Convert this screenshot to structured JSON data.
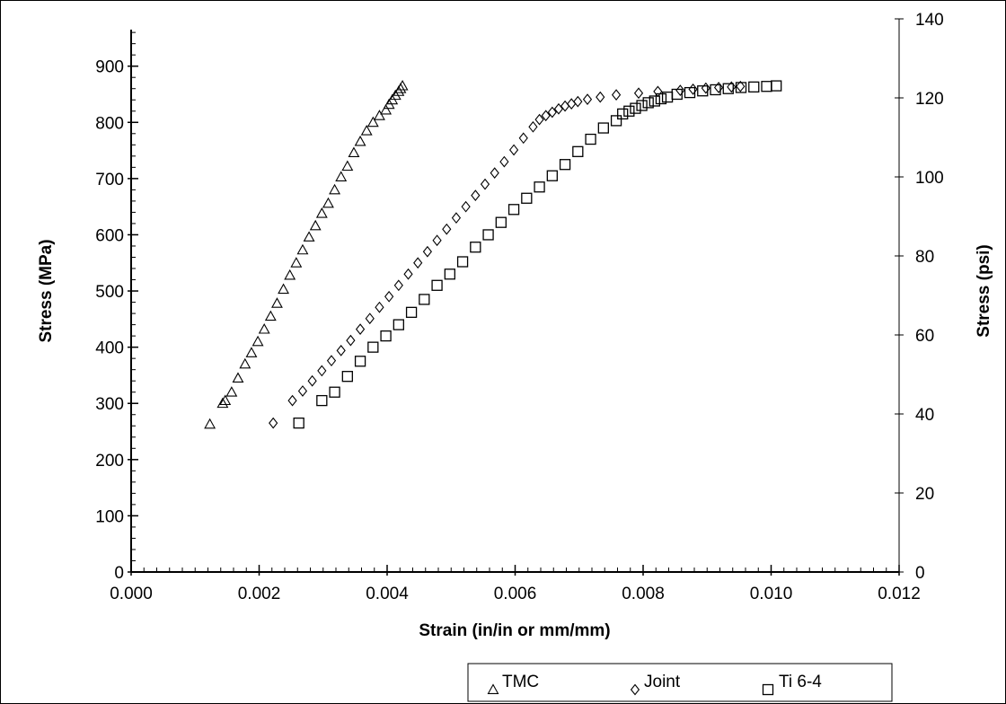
{
  "chart_data": {
    "type": "scatter",
    "title": "",
    "xlabel": "Strain (in/in or mm/mm)",
    "ylabel": "Stress (MPa)",
    "y2label": "Stress (psi)",
    "xlim": [
      0,
      0.012
    ],
    "ylim": [
      0,
      965
    ],
    "y2lim": [
      0,
      140
    ],
    "xticks": [
      "0.000",
      "0.002",
      "0.004",
      "0.006",
      "0.008",
      "0.010",
      "0.012"
    ],
    "yticks": [
      "0",
      "100",
      "200",
      "300",
      "400",
      "500",
      "600",
      "700",
      "800",
      "900"
    ],
    "y2ticks": [
      "0",
      "20",
      "40",
      "60",
      "80",
      "100",
      "120",
      "140"
    ],
    "grid": false,
    "legend_position": "bottom-right",
    "series": [
      {
        "name": "TMC",
        "marker": "triangle",
        "x": [
          0.00123,
          0.00143,
          0.00147,
          0.00157,
          0.00167,
          0.00178,
          0.00188,
          0.00198,
          0.00208,
          0.00218,
          0.00228,
          0.00238,
          0.00248,
          0.00258,
          0.00268,
          0.00278,
          0.00288,
          0.00298,
          0.00308,
          0.00318,
          0.00328,
          0.00338,
          0.00348,
          0.00358,
          0.00368,
          0.00378,
          0.00388,
          0.00398,
          0.00403,
          0.00408,
          0.00413,
          0.00418,
          0.00421,
          0.00424
        ],
        "y": [
          263,
          300,
          305,
          320,
          345,
          370,
          390,
          410,
          432,
          455,
          478,
          503,
          528,
          550,
          573,
          596,
          616,
          638,
          656,
          680,
          703,
          722,
          746,
          766,
          785,
          800,
          812,
          822,
          832,
          840,
          848,
          855,
          860,
          865
        ]
      },
      {
        "name": "Joint",
        "marker": "diamond",
        "x": [
          0.00222,
          0.00252,
          0.00268,
          0.00283,
          0.00298,
          0.00313,
          0.00328,
          0.00343,
          0.00358,
          0.00373,
          0.00388,
          0.00403,
          0.00418,
          0.00433,
          0.00448,
          0.00463,
          0.00478,
          0.00493,
          0.00508,
          0.00523,
          0.00538,
          0.00553,
          0.00568,
          0.00583,
          0.00598,
          0.00613,
          0.00628,
          0.00638,
          0.00648,
          0.00658,
          0.00668,
          0.00678,
          0.00688,
          0.00698,
          0.00713,
          0.00733,
          0.00758,
          0.00793,
          0.00823,
          0.00858,
          0.00878,
          0.00898,
          0.00918,
          0.00938,
          0.00952
        ],
        "y": [
          265,
          305,
          322,
          340,
          358,
          376,
          394,
          412,
          432,
          451,
          471,
          490,
          510,
          530,
          550,
          570,
          590,
          610,
          630,
          650,
          670,
          690,
          710,
          730,
          751,
          772,
          792,
          805,
          812,
          818,
          824,
          829,
          833,
          837,
          841,
          845,
          849,
          852,
          855,
          857,
          859,
          861,
          862,
          863,
          864
        ]
      },
      {
        "name": "Ti 6-4",
        "marker": "square",
        "x": [
          0.00262,
          0.00298,
          0.00318,
          0.00338,
          0.00358,
          0.00378,
          0.00398,
          0.00418,
          0.00438,
          0.00458,
          0.00478,
          0.00498,
          0.00518,
          0.00538,
          0.00558,
          0.00578,
          0.00598,
          0.00618,
          0.00638,
          0.00658,
          0.00678,
          0.00698,
          0.00718,
          0.00738,
          0.00758,
          0.00768,
          0.00778,
          0.00788,
          0.00798,
          0.00808,
          0.00818,
          0.00828,
          0.00838,
          0.00853,
          0.00873,
          0.00893,
          0.00913,
          0.00933,
          0.00953,
          0.00973,
          0.00993,
          0.01008
        ],
        "y": [
          265,
          305,
          320,
          348,
          375,
          400,
          420,
          440,
          462,
          485,
          510,
          530,
          552,
          578,
          600,
          622,
          645,
          665,
          685,
          705,
          725,
          748,
          770,
          790,
          803,
          815,
          820,
          825,
          830,
          835,
          838,
          842,
          845,
          850,
          853,
          856,
          858,
          860,
          862,
          863,
          864,
          865
        ]
      }
    ]
  }
}
